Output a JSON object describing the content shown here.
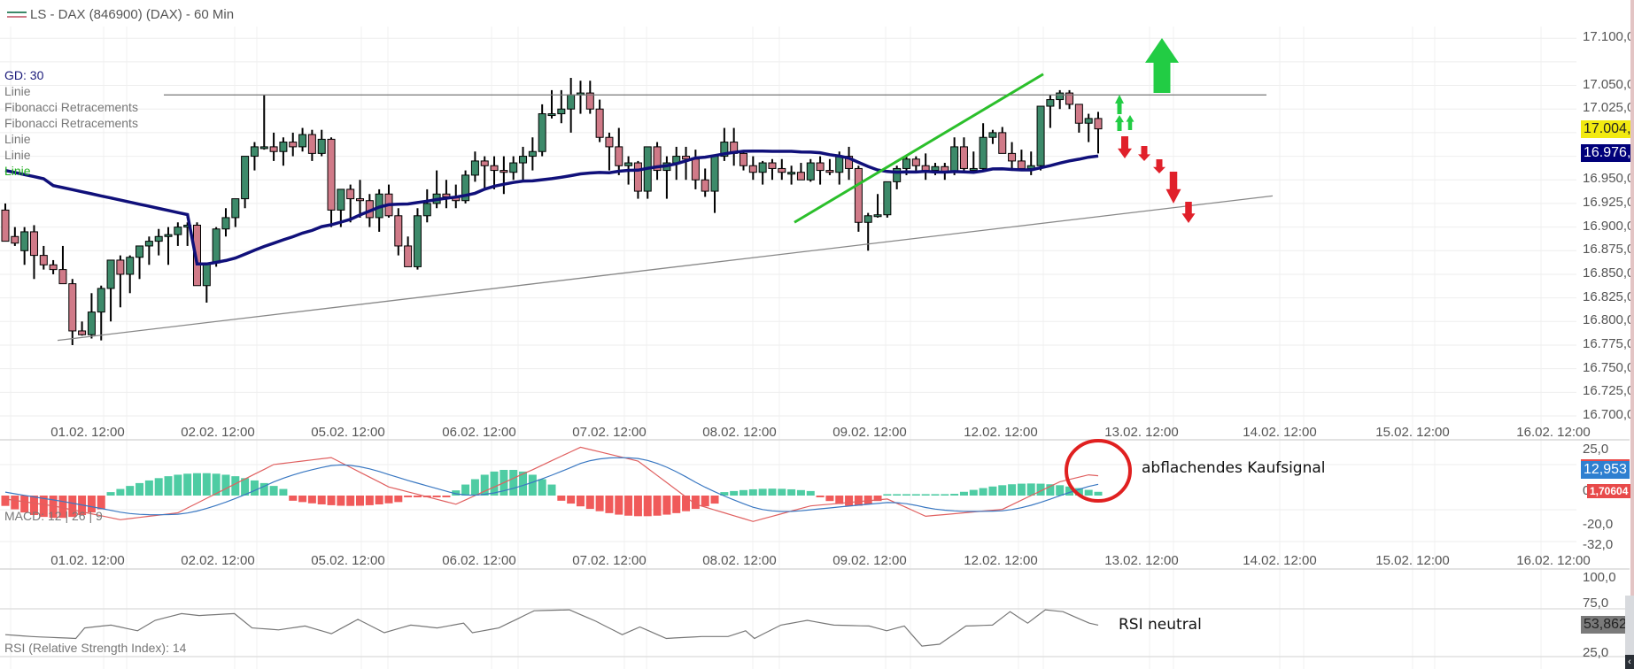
{
  "header": {
    "title": "LS - DAX (846900) (DAX) - 60 Min"
  },
  "legend": {
    "items": [
      {
        "label": "GD: 30",
        "style": "gd"
      },
      {
        "label": "Linie",
        "style": "grey"
      },
      {
        "label": "Fibonacci Retracements",
        "style": "grey"
      },
      {
        "label": "Fibonacci Retracements",
        "style": "grey"
      },
      {
        "label": "Linie",
        "style": "grey"
      },
      {
        "label": "Linie",
        "style": "grey"
      },
      {
        "label": "Linie",
        "style": "green"
      }
    ]
  },
  "price_axis": {
    "ticks": [
      "17.100,0",
      "17.050,0",
      "17.025,0",
      "16.950,0",
      "16.925,0",
      "16.900,0",
      "16.875,0",
      "16.850,0",
      "16.825,0",
      "16.800,0",
      "16.775,0",
      "16.750,0",
      "16.725,0",
      "16.700,0"
    ],
    "last_price": "17.004,",
    "ma_value": "16.976,"
  },
  "date_axis": {
    "labels": [
      "01.02. 12:00",
      "02.02. 12:00",
      "05.02. 12:00",
      "06.02. 12:00",
      "07.02. 12:00",
      "08.02. 12:00",
      "09.02. 12:00",
      "12.02. 12:00",
      "13.02. 12:00",
      "14.02. 12:00",
      "15.02. 12:00",
      "16.02. 12:00"
    ]
  },
  "macd": {
    "label": "MACD: 12 | 26 | 9",
    "ticks": [
      "25,0",
      "0",
      "-20,0",
      "-32,0"
    ],
    "macd_value": "12,953",
    "hist_value": "1,70604",
    "annotation": "abflachendes Kaufsignal"
  },
  "rsi": {
    "label": "RSI (Relative Strength Index): 14",
    "ticks": [
      "100,0",
      "75,0",
      "25,0"
    ],
    "value": "53,862",
    "annotation": "RSI neutral"
  },
  "colors": {
    "bull": "#3d8a6a",
    "bear": "#d07a88",
    "ma": "#10107a",
    "trend_green": "#2bbf2b",
    "arrow_green": "#22cc44",
    "arrow_red": "#e0202a",
    "hist_pos": "#4ecca3",
    "hist_neg": "#f05a5a",
    "macd_line": "#e06060",
    "signal_line": "#3a78c2",
    "last_price_bg": "#f2ea10",
    "ma_bg": "#00007a",
    "macd_badge": "#2e7fd0",
    "hist_badge": "#e84a4a",
    "rsi_badge": "#7a7a7a"
  },
  "chart_data": [
    {
      "type": "candlestick",
      "title": "LS - DAX (846900) (DAX) - 60 Min",
      "xlabel": "",
      "ylabel": "Price",
      "ylim": [
        16690,
        17110
      ],
      "x_tick_labels": [
        "01.02. 12:00",
        "02.02. 12:00",
        "05.02. 12:00",
        "06.02. 12:00",
        "07.02. 12:00",
        "08.02. 12:00",
        "09.02. 12:00",
        "12.02. 12:00",
        "13.02. 12:00",
        "14.02. 12:00",
        "15.02. 12:00",
        "16.02. 12:00"
      ],
      "y_tick_labels": [
        "16.700",
        "16.725",
        "16.750",
        "16.775",
        "16.800",
        "16.825",
        "16.850",
        "16.875",
        "16.900",
        "16.925",
        "16.950",
        "17.025",
        "17.050",
        "17.100"
      ],
      "ohlc": [
        [
          16918,
          16925,
          16885,
          16885
        ],
        [
          16890,
          16900,
          16880,
          16883
        ],
        [
          16875,
          16900,
          16860,
          16895
        ],
        [
          16895,
          16902,
          16845,
          16870
        ],
        [
          16870,
          16880,
          16855,
          16860
        ],
        [
          16860,
          16865,
          16850,
          16855
        ],
        [
          16855,
          16880,
          16840,
          16840
        ],
        [
          16840,
          16845,
          16775,
          16790
        ],
        [
          16790,
          16800,
          16785,
          16786
        ],
        [
          16786,
          16830,
          16782,
          16810
        ],
        [
          16810,
          16838,
          16780,
          16835
        ],
        [
          16835,
          16865,
          16800,
          16865
        ],
        [
          16865,
          16870,
          16815,
          16850
        ],
        [
          16850,
          16870,
          16830,
          16868
        ],
        [
          16868,
          16880,
          16845,
          16880
        ],
        [
          16880,
          16890,
          16860,
          16885
        ],
        [
          16885,
          16898,
          16870,
          16890
        ],
        [
          16890,
          16900,
          16860,
          16892
        ],
        [
          16892,
          16905,
          16880,
          16900
        ],
        [
          16900,
          16905,
          16880,
          16902
        ],
        [
          16902,
          16905,
          16840,
          16838
        ],
        [
          16838,
          16845,
          16820,
          16862
        ],
        [
          16862,
          16900,
          16858,
          16898
        ],
        [
          16898,
          16920,
          16890,
          16910
        ],
        [
          16910,
          16930,
          16900,
          16930
        ],
        [
          16930,
          16975,
          16920,
          16975
        ],
        [
          16975,
          16990,
          16960,
          16985
        ],
        [
          16985,
          17040,
          16982,
          16985
        ],
        [
          16985,
          17000,
          16970,
          16980
        ],
        [
          16980,
          16995,
          16965,
          16990
        ],
        [
          16990,
          17000,
          16975,
          16985
        ],
        [
          16985,
          17005,
          16980,
          16998
        ],
        [
          16998,
          17003,
          16970,
          16978
        ],
        [
          16978,
          17003,
          16975,
          16993
        ],
        [
          16993,
          16995,
          16900,
          16918
        ],
        [
          16918,
          16935,
          16900,
          16940
        ],
        [
          16940,
          16945,
          16905,
          16930
        ],
        [
          16930,
          16950,
          16910,
          16928
        ],
        [
          16928,
          16935,
          16900,
          16910
        ],
        [
          16910,
          16940,
          16895,
          16935
        ],
        [
          16935,
          16945,
          16910,
          16912
        ],
        [
          16912,
          16920,
          16870,
          16880
        ],
        [
          16880,
          16890,
          16860,
          16858
        ],
        [
          16858,
          16920,
          16855,
          16912
        ],
        [
          16912,
          16940,
          16905,
          16925
        ],
        [
          16925,
          16960,
          16920,
          16935
        ],
        [
          16935,
          16950,
          16920,
          16932
        ],
        [
          16932,
          16945,
          16920,
          16928
        ],
        [
          16928,
          16960,
          16925,
          16955
        ],
        [
          16955,
          16980,
          16948,
          16970
        ],
        [
          16970,
          16975,
          16940,
          16965
        ],
        [
          16965,
          16975,
          16940,
          16960
        ],
        [
          16960,
          16975,
          16935,
          16958
        ],
        [
          16958,
          16975,
          16950,
          16968
        ],
        [
          16968,
          16985,
          16950,
          16975
        ],
        [
          16975,
          16995,
          16960,
          16980
        ],
        [
          16980,
          17030,
          16975,
          17020
        ],
        [
          17020,
          17045,
          17015,
          17020
        ],
        [
          17020,
          17045,
          17010,
          17025
        ],
        [
          17025,
          17058,
          17000,
          17040
        ],
        [
          17040,
          17055,
          17020,
          17042
        ],
        [
          17042,
          17055,
          17020,
          17025
        ],
        [
          17025,
          17035,
          16990,
          16995
        ],
        [
          16995,
          17000,
          16960,
          16985
        ],
        [
          16985,
          17005,
          16955,
          16965
        ],
        [
          16965,
          16975,
          16945,
          16968
        ],
        [
          16968,
          16970,
          16930,
          16938
        ],
        [
          16938,
          16985,
          16930,
          16985
        ],
        [
          16985,
          16990,
          16950,
          16960
        ],
        [
          16960,
          16975,
          16930,
          16968
        ],
        [
          16968,
          16985,
          16950,
          16975
        ],
        [
          16975,
          16985,
          16950,
          16972
        ],
        [
          16972,
          16982,
          16940,
          16950
        ],
        [
          16950,
          16962,
          16932,
          16938
        ],
        [
          16938,
          16975,
          16915,
          16975
        ],
        [
          16975,
          17005,
          16970,
          16990
        ],
        [
          16990,
          17005,
          16965,
          16978
        ],
        [
          16978,
          16980,
          16960,
          16965
        ],
        [
          16965,
          16975,
          16950,
          16958
        ],
        [
          16958,
          16970,
          16945,
          16968
        ],
        [
          16968,
          16972,
          16950,
          16962
        ],
        [
          16962,
          16972,
          16950,
          16958
        ],
        [
          16958,
          16965,
          16945,
          16958
        ],
        [
          16958,
          16968,
          16950,
          16950
        ],
        [
          16950,
          16972,
          16948,
          16968
        ],
        [
          16968,
          16975,
          16945,
          16960
        ],
        [
          16960,
          16972,
          16955,
          16958
        ],
        [
          16958,
          16980,
          16945,
          16975
        ],
        [
          16975,
          16985,
          16950,
          16962
        ],
        [
          16962,
          16965,
          16895,
          16905
        ],
        [
          16905,
          16915,
          16875,
          16912
        ],
        [
          16912,
          16935,
          16910,
          16913
        ],
        [
          16913,
          16948,
          16910,
          16948
        ],
        [
          16948,
          16965,
          16940,
          16962
        ],
        [
          16962,
          16975,
          16955,
          16972
        ],
        [
          16972,
          16975,
          16958,
          16965
        ],
        [
          16965,
          16978,
          16950,
          16960
        ],
        [
          16960,
          16968,
          16955,
          16964
        ],
        [
          16964,
          16968,
          16950,
          16958
        ],
        [
          16958,
          16995,
          16955,
          16985
        ],
        [
          16985,
          16995,
          16960,
          16962
        ],
        [
          16962,
          16980,
          16960,
          16962
        ],
        [
          16962,
          17010,
          16960,
          16995
        ],
        [
          16995,
          17003,
          16988,
          17000
        ],
        [
          17000,
          17006,
          16985,
          16978
        ],
        [
          16978,
          16990,
          16960,
          16970
        ],
        [
          16970,
          16982,
          16960,
          16962
        ],
        [
          16962,
          16980,
          16955,
          16965
        ],
        [
          16965,
          17005,
          16960,
          17028
        ],
        [
          17028,
          17040,
          17005,
          17035
        ],
        [
          17035,
          17045,
          17025,
          17042
        ],
        [
          17042,
          17045,
          17025,
          17030
        ],
        [
          17030,
          17030,
          17000,
          17010
        ],
        [
          17010,
          17020,
          16990,
          17015
        ],
        [
          17015,
          17022,
          16978,
          17004
        ]
      ],
      "moving_average": {
        "name": "GD: 30",
        "last": 16976
      },
      "lines": [
        {
          "name": "resistance",
          "from": [
            185,
            17040
          ],
          "to": [
            1430,
            17040
          ]
        },
        {
          "name": "support",
          "from": [
            65,
            16780
          ],
          "to": [
            1437,
            16933
          ]
        },
        {
          "name": "green trend",
          "from": [
            897,
            16905
          ],
          "to": [
            1178,
            17062
          ]
        }
      ],
      "annotations": [
        "green up arrows (bullish scenario)",
        "red down arrows (bearish scenario)"
      ]
    },
    {
      "type": "bar+line",
      "title": "MACD: 12 | 26 | 9",
      "ylim": [
        -32,
        25
      ],
      "y_tick_labels": [
        "25,0",
        "0",
        "-20,0",
        "-32,0"
      ],
      "last_macd": 12.953,
      "last_histogram": 1.70604,
      "annotation": "abflachendes Kaufsignal"
    },
    {
      "type": "line",
      "title": "RSI (Relative Strength Index): 14",
      "ylim": [
        0,
        100
      ],
      "y_tick_labels": [
        "100,0",
        "75,0",
        "25,0"
      ],
      "last": 53.862,
      "annotation": "RSI neutral"
    }
  ]
}
